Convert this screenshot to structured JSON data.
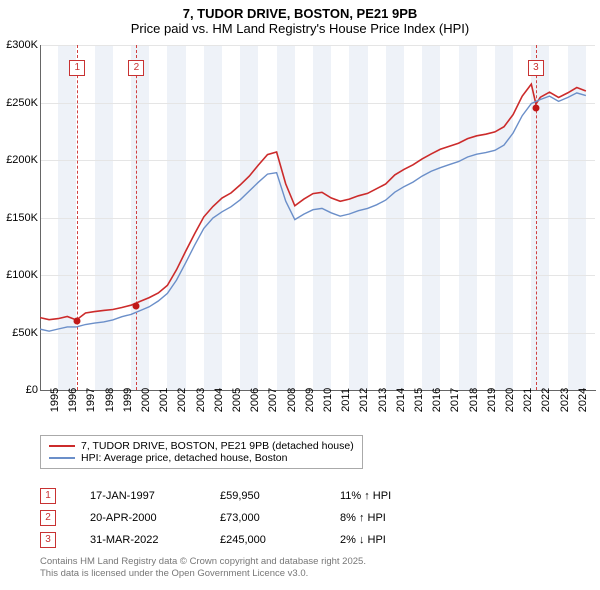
{
  "title": {
    "line1": "7, TUDOR DRIVE, BOSTON, PE21 9PB",
    "line2": "Price paid vs. HM Land Registry's House Price Index (HPI)"
  },
  "chart": {
    "type": "line",
    "x_range": [
      1995,
      2025.5
    ],
    "y_range": [
      0,
      300000
    ],
    "y_ticks": [
      0,
      50000,
      100000,
      150000,
      200000,
      250000,
      300000
    ],
    "y_tick_labels": [
      "£0",
      "£50K",
      "£100K",
      "£150K",
      "£200K",
      "£250K",
      "£300K"
    ],
    "x_ticks": [
      1995,
      1996,
      1997,
      1998,
      1999,
      2000,
      2001,
      2002,
      2003,
      2004,
      2005,
      2006,
      2007,
      2008,
      2009,
      2010,
      2011,
      2012,
      2013,
      2014,
      2015,
      2016,
      2017,
      2018,
      2019,
      2020,
      2021,
      2022,
      2023,
      2024
    ],
    "grid_color": "#e5e5e5",
    "band_color": "#eef2f8",
    "background": "#ffffff",
    "series": [
      {
        "name": "7, TUDOR DRIVE, BOSTON, PE21 9PB (detached house)",
        "color": "#cc2b2b",
        "width": 1.6,
        "data": [
          [
            1995,
            63000
          ],
          [
            1995.5,
            62000
          ],
          [
            1996,
            63000
          ],
          [
            1996.5,
            64000
          ],
          [
            1997,
            60000
          ],
          [
            1997.5,
            66000
          ],
          [
            1998,
            68000
          ],
          [
            1998.5,
            70000
          ],
          [
            1999,
            71000
          ],
          [
            1999.5,
            72000
          ],
          [
            2000,
            73000
          ],
          [
            2000.5,
            76000
          ],
          [
            2001,
            80000
          ],
          [
            2001.5,
            85000
          ],
          [
            2002,
            92000
          ],
          [
            2002.5,
            105000
          ],
          [
            2003,
            120000
          ],
          [
            2003.5,
            135000
          ],
          [
            2004,
            150000
          ],
          [
            2004.5,
            160000
          ],
          [
            2005,
            168000
          ],
          [
            2005.5,
            172000
          ],
          [
            2006,
            178000
          ],
          [
            2006.5,
            185000
          ],
          [
            2007,
            195000
          ],
          [
            2007.5,
            205000
          ],
          [
            2008,
            208000
          ],
          [
            2008.5,
            180000
          ],
          [
            2009,
            160000
          ],
          [
            2009.5,
            165000
          ],
          [
            2010,
            170000
          ],
          [
            2010.5,
            172000
          ],
          [
            2011,
            168000
          ],
          [
            2011.5,
            165000
          ],
          [
            2012,
            166000
          ],
          [
            2012.5,
            168000
          ],
          [
            2013,
            170000
          ],
          [
            2013.5,
            175000
          ],
          [
            2014,
            180000
          ],
          [
            2014.5,
            188000
          ],
          [
            2015,
            192000
          ],
          [
            2015.5,
            195000
          ],
          [
            2016,
            200000
          ],
          [
            2016.5,
            205000
          ],
          [
            2017,
            210000
          ],
          [
            2017.5,
            213000
          ],
          [
            2018,
            215000
          ],
          [
            2018.5,
            218000
          ],
          [
            2019,
            220000
          ],
          [
            2019.5,
            222000
          ],
          [
            2020,
            225000
          ],
          [
            2020.5,
            230000
          ],
          [
            2021,
            240000
          ],
          [
            2021.5,
            255000
          ],
          [
            2022,
            265000
          ],
          [
            2022.25,
            248000
          ],
          [
            2022.5,
            255000
          ],
          [
            2023,
            260000
          ],
          [
            2023.5,
            255000
          ],
          [
            2024,
            258000
          ],
          [
            2024.5,
            262000
          ],
          [
            2025,
            260000
          ]
        ]
      },
      {
        "name": "HPI: Average price, detached house, Boston",
        "color": "#6b8fc9",
        "width": 1.4,
        "data": [
          [
            1995,
            53000
          ],
          [
            1995.5,
            52000
          ],
          [
            1996,
            54000
          ],
          [
            1996.5,
            55000
          ],
          [
            1997,
            54000
          ],
          [
            1997.5,
            56000
          ],
          [
            1998,
            58000
          ],
          [
            1998.5,
            60000
          ],
          [
            1999,
            62000
          ],
          [
            1999.5,
            64000
          ],
          [
            2000,
            65000
          ],
          [
            2000.5,
            68000
          ],
          [
            2001,
            72000
          ],
          [
            2001.5,
            78000
          ],
          [
            2002,
            85000
          ],
          [
            2002.5,
            96000
          ],
          [
            2003,
            110000
          ],
          [
            2003.5,
            125000
          ],
          [
            2004,
            140000
          ],
          [
            2004.5,
            150000
          ],
          [
            2005,
            156000
          ],
          [
            2005.5,
            160000
          ],
          [
            2006,
            165000
          ],
          [
            2006.5,
            172000
          ],
          [
            2007,
            180000
          ],
          [
            2007.5,
            188000
          ],
          [
            2008,
            190000
          ],
          [
            2008.5,
            165000
          ],
          [
            2009,
            148000
          ],
          [
            2009.5,
            152000
          ],
          [
            2010,
            156000
          ],
          [
            2010.5,
            158000
          ],
          [
            2011,
            155000
          ],
          [
            2011.5,
            152000
          ],
          [
            2012,
            153000
          ],
          [
            2012.5,
            155000
          ],
          [
            2013,
            157000
          ],
          [
            2013.5,
            161000
          ],
          [
            2014,
            166000
          ],
          [
            2014.5,
            173000
          ],
          [
            2015,
            177000
          ],
          [
            2015.5,
            180000
          ],
          [
            2016,
            185000
          ],
          [
            2016.5,
            190000
          ],
          [
            2017,
            194000
          ],
          [
            2017.5,
            197000
          ],
          [
            2018,
            199000
          ],
          [
            2018.5,
            202000
          ],
          [
            2019,
            204000
          ],
          [
            2019.5,
            206000
          ],
          [
            2020,
            209000
          ],
          [
            2020.5,
            214000
          ],
          [
            2021,
            224000
          ],
          [
            2021.5,
            238000
          ],
          [
            2022,
            248000
          ],
          [
            2022.5,
            252000
          ],
          [
            2023,
            256000
          ],
          [
            2023.5,
            252000
          ],
          [
            2024,
            255000
          ],
          [
            2024.5,
            258000
          ],
          [
            2025,
            256000
          ]
        ]
      }
    ],
    "sale_markers": [
      {
        "n": "1",
        "x": 1997.05,
        "y": 59950,
        "box_top": 60
      },
      {
        "n": "2",
        "x": 2000.3,
        "y": 73000,
        "box_top": 60
      },
      {
        "n": "3",
        "x": 2022.25,
        "y": 245000,
        "box_top": 60
      }
    ],
    "sale_dots_color": "#c01818"
  },
  "legend": {
    "items": [
      {
        "color": "#cc2b2b",
        "label": "7, TUDOR DRIVE, BOSTON, PE21 9PB (detached house)"
      },
      {
        "color": "#6b8fc9",
        "label": "HPI: Average price, detached house, Boston"
      }
    ]
  },
  "transactions": [
    {
      "n": "1",
      "date": "17-JAN-1997",
      "price": "£59,950",
      "delta": "11% ↑ HPI"
    },
    {
      "n": "2",
      "date": "20-APR-2000",
      "price": "£73,000",
      "delta": "8% ↑ HPI"
    },
    {
      "n": "3",
      "date": "31-MAR-2022",
      "price": "£245,000",
      "delta": "2% ↓ HPI"
    }
  ],
  "footer": {
    "line1": "Contains HM Land Registry data © Crown copyright and database right 2025.",
    "line2": "This data is licensed under the Open Government Licence v3.0."
  }
}
